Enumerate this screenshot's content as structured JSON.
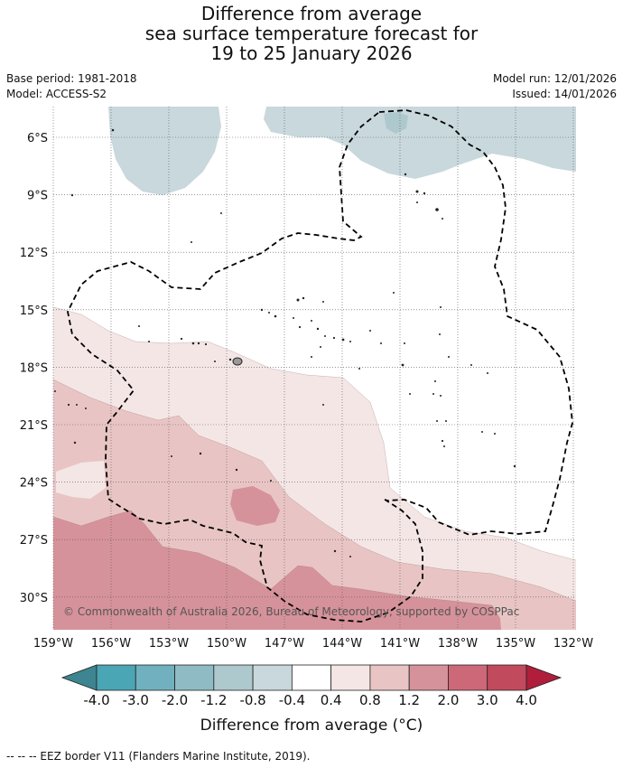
{
  "header": {
    "title_line1": "Difference from average",
    "title_line2": "sea surface temperature forecast for",
    "title_line3": "19 to 25 January 2026",
    "base_period": "Base period: 1981-2018",
    "model": "Model: ACCESS-S2",
    "model_run": "Model run: 12/01/2026",
    "issued": "Issued: 14/01/2026"
  },
  "map": {
    "lat_labels": [
      "6°S",
      "9°S",
      "12°S",
      "15°S",
      "18°S",
      "21°S",
      "24°S",
      "27°S",
      "30°S"
    ],
    "lon_labels": [
      "159°W",
      "156°W",
      "153°W",
      "150°W",
      "147°W",
      "144°W",
      "141°W",
      "138°W",
      "135°W",
      "132°W"
    ],
    "copyright": "© Commonwealth of Australia 2026, Bureau of Meteorology, supported by COSPPac"
  },
  "colorbar": {
    "ticks": [
      "-4.0",
      "-3.0",
      "-2.0",
      "-1.2",
      "-0.8",
      "-0.4",
      "0.4",
      "0.8",
      "1.2",
      "2.0",
      "3.0",
      "4.0"
    ],
    "colors": {
      "lt_m4": "#3d8590",
      "m4_m3": "#4aa5b5",
      "m3_m2": "#71b1bf",
      "m2_m1_2": "#8fbcc4",
      "m1_2_m0_8": "#adc9cd",
      "m0_8_m0_4": "#c8d8dc",
      "m0_4_0_4": "#ffffff",
      "p0_4_0_8": "#f5e6e6",
      "p0_8_1_2": "#e8c5c4",
      "p1_2_2_0": "#d6929a",
      "p2_0_3_0": "#cd6878",
      "p3_0_4_0": "#c14a5c",
      "gt_4": "#b01e3c"
    },
    "label": "Difference from average (°C)"
  },
  "footnote": "--  --  -- EEZ border V11 (Flanders Marine Institute, 2019)."
}
